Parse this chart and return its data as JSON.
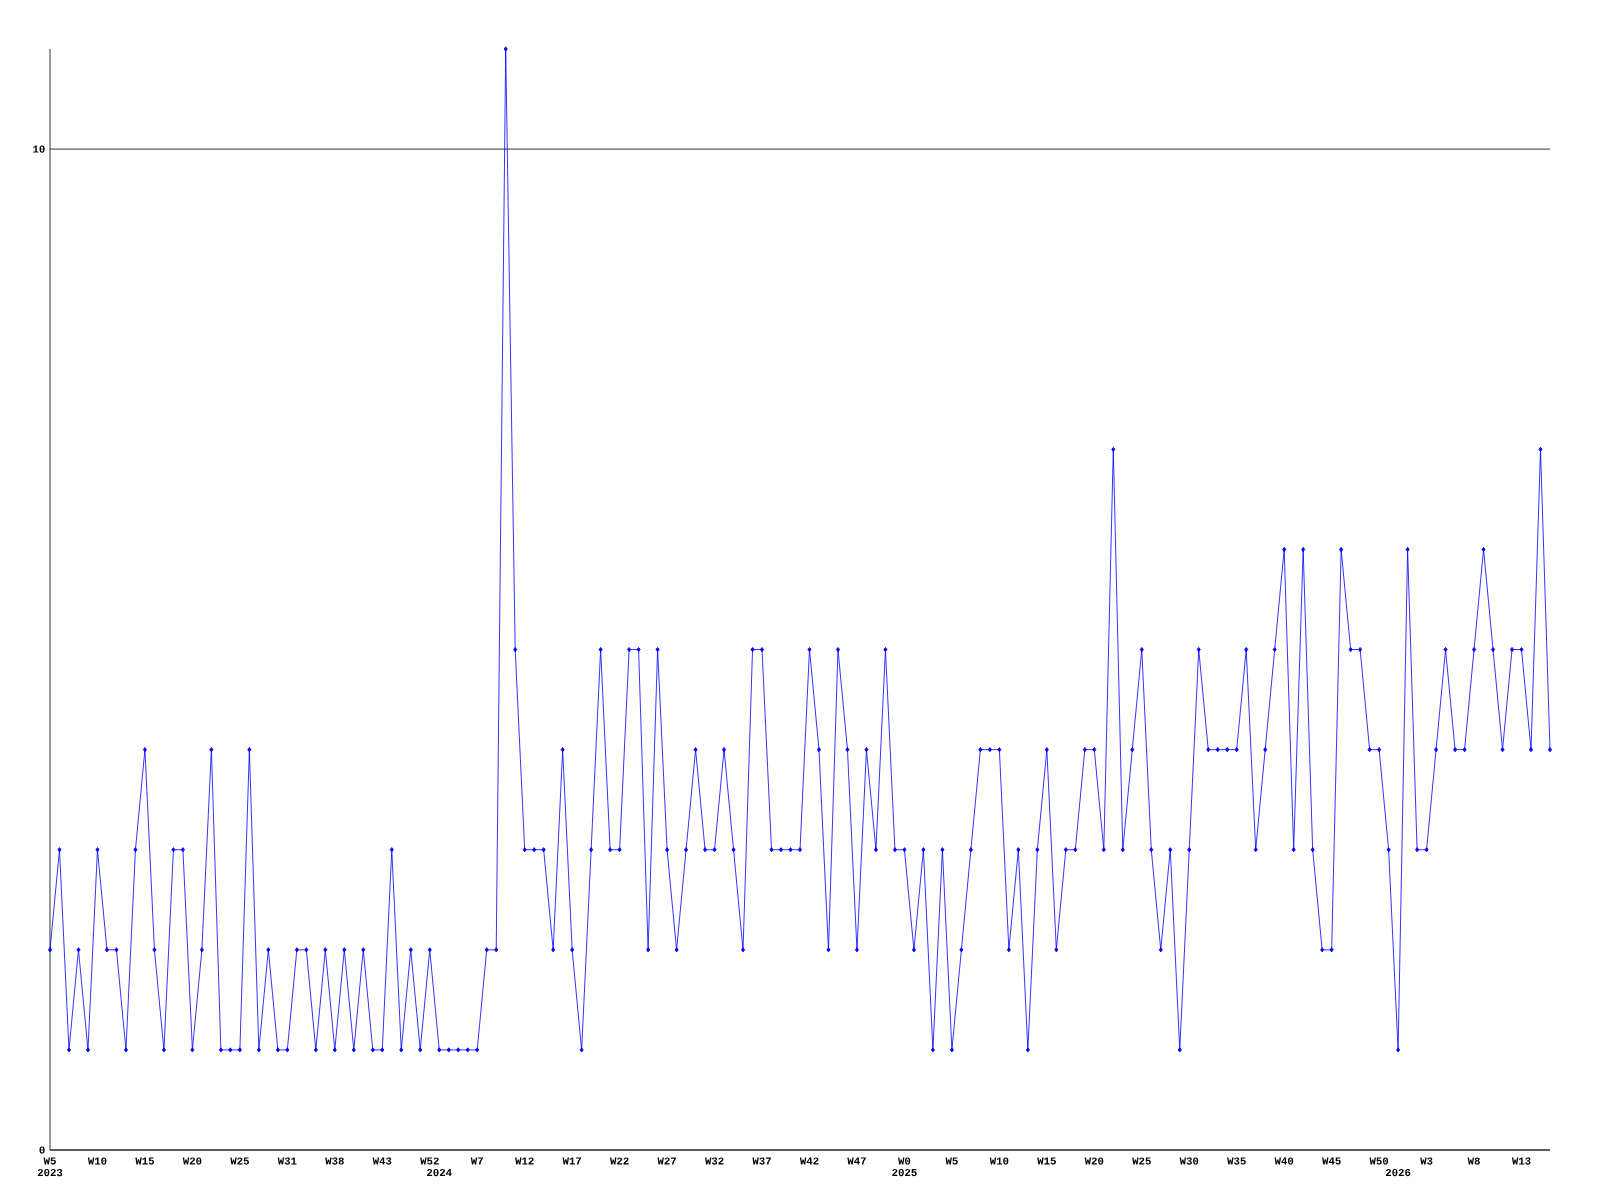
{
  "chart_data": {
    "type": "line",
    "categories": [
      "W5",
      null,
      null,
      null,
      null,
      "W10",
      null,
      null,
      null,
      null,
      "W15",
      null,
      null,
      null,
      null,
      "W20",
      null,
      null,
      null,
      null,
      "W25",
      null,
      null,
      null,
      null,
      "W31",
      null,
      null,
      null,
      null,
      "W38",
      null,
      null,
      null,
      null,
      "W43",
      null,
      null,
      null,
      null,
      "W52",
      null,
      null,
      null,
      null,
      "W7",
      null,
      null,
      null,
      null,
      "W12",
      null,
      null,
      null,
      null,
      "W17",
      null,
      null,
      null,
      null,
      "W22",
      null,
      null,
      null,
      null,
      "W27",
      null,
      null,
      null,
      null,
      "W32",
      null,
      null,
      null,
      null,
      "W37",
      null,
      null,
      null,
      null,
      "W42",
      null,
      null,
      null,
      null,
      "W47",
      null,
      null,
      null,
      null,
      "W0",
      null,
      null,
      null,
      null,
      "W5",
      null,
      null,
      null,
      null,
      "W10",
      null,
      null,
      null,
      null,
      "W15",
      null,
      null,
      null,
      null,
      "W20",
      null,
      null,
      null,
      null,
      "W25",
      null,
      null,
      null,
      null,
      "W30",
      null,
      null,
      null,
      null,
      "W35",
      null,
      null,
      null,
      null,
      "W40",
      null,
      null,
      null,
      null,
      "W45",
      null,
      null,
      null,
      null,
      "W50",
      null,
      null,
      null,
      null,
      "W3",
      null,
      null,
      null,
      null,
      "W8",
      null,
      null,
      null,
      null,
      "W13",
      null,
      null,
      null
    ],
    "series": [
      {
        "color": "#0000ff",
        "values": [
          2,
          3,
          1,
          2,
          1,
          3,
          2,
          2,
          1,
          3,
          4,
          2,
          1,
          3,
          3,
          1,
          2,
          4,
          1,
          1,
          1,
          4,
          1,
          2,
          1,
          1,
          2,
          2,
          1,
          2,
          1,
          2,
          1,
          2,
          1,
          1,
          3,
          1,
          2,
          1,
          2,
          1,
          1,
          1,
          1,
          1,
          2,
          2,
          11,
          5,
          3,
          3,
          3,
          2,
          4,
          2,
          1,
          3,
          5,
          3,
          3,
          5,
          5,
          2,
          5,
          3,
          2,
          3,
          4,
          3,
          3,
          4,
          3,
          2,
          5,
          5,
          3,
          3,
          3,
          3,
          5,
          4,
          2,
          5,
          4,
          2,
          4,
          3,
          5,
          3,
          3,
          2,
          3,
          1,
          3,
          1,
          2,
          3,
          4,
          4,
          4,
          2,
          3,
          1,
          3,
          4,
          2,
          3,
          3,
          4,
          4,
          3,
          7,
          3,
          4,
          5,
          3,
          2,
          3,
          1,
          3,
          5,
          4,
          4,
          4,
          4,
          5,
          3,
          4,
          5,
          6,
          3,
          6,
          3,
          2,
          2,
          6,
          5,
          5,
          4,
          4,
          3,
          1,
          6,
          3,
          3,
          4,
          5,
          4,
          4,
          5,
          6,
          5,
          4,
          5,
          5,
          4,
          7,
          4
        ]
      }
    ],
    "ylim": [
      0,
      11
    ],
    "yticks": [
      0,
      10
    ],
    "annotations": [
      "2023",
      "2024",
      "2025",
      "2026"
    ],
    "grid": "y",
    "marker": "diamond",
    "line_style": "solid"
  }
}
